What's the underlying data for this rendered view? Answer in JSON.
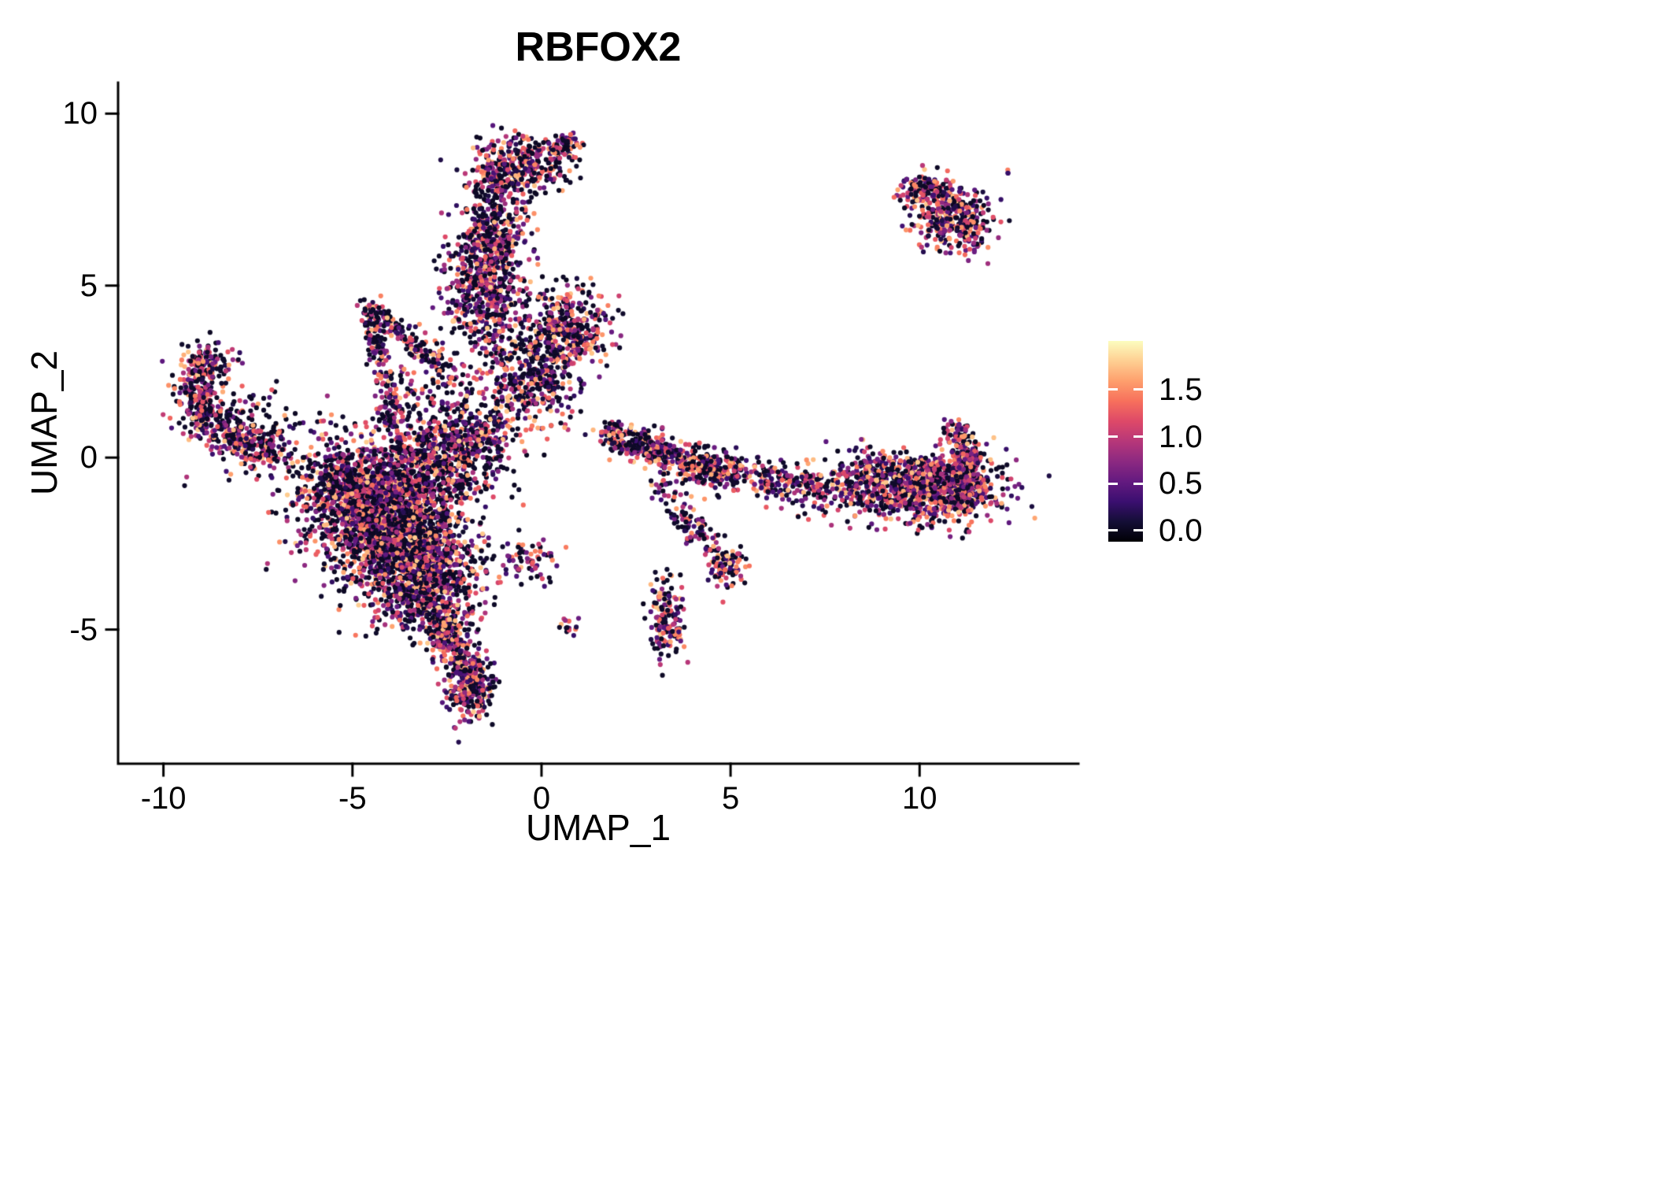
{
  "chart_data": {
    "type": "scatter",
    "title": "RBFOX2",
    "xlabel": "UMAP_1",
    "ylabel": "UMAP_2",
    "grid": false,
    "xlim": [
      -11.2,
      14.2
    ],
    "ylim": [
      -8.9,
      10.9
    ],
    "x_ticks": [
      -10,
      -5,
      0,
      5,
      10
    ],
    "x_tick_labels": [
      "-10",
      "-5",
      "0",
      "5",
      "10"
    ],
    "y_ticks": [
      10,
      5,
      0,
      -5
    ],
    "y_tick_labels": [
      "10",
      "5",
      "0",
      "-5"
    ],
    "seed": 42,
    "point_style": {
      "radius_px": 3.1,
      "zero_frac": 0.38,
      "value_min": 0.12,
      "value_max": 1.8,
      "value_pow": 1.1
    },
    "legend": {
      "position": "right",
      "tick_labels": [
        "1.5",
        "1.0",
        "0.5",
        "0.0"
      ],
      "tick_values": [
        1.5,
        1.0,
        0.5,
        0.0
      ],
      "colormap": "magma",
      "colormap_stops": [
        {
          "pos": 0.0,
          "color": "#000004"
        },
        {
          "pos": 0.1,
          "color": "#140e36"
        },
        {
          "pos": 0.2,
          "color": "#3b0f70"
        },
        {
          "pos": 0.3,
          "color": "#641a80"
        },
        {
          "pos": 0.4,
          "color": "#8c2981"
        },
        {
          "pos": 0.5,
          "color": "#b73779"
        },
        {
          "pos": 0.6,
          "color": "#de4968"
        },
        {
          "pos": 0.7,
          "color": "#f7705c"
        },
        {
          "pos": 0.8,
          "color": "#fe9f6d"
        },
        {
          "pos": 0.9,
          "color": "#fecf92"
        },
        {
          "pos": 1.0,
          "color": "#fcfdbf"
        }
      ]
    },
    "clusters": [
      {
        "name": "top-islet-main",
        "type": "blob",
        "n": 380,
        "cx": -0.7,
        "cy": 8.4,
        "sx": 0.6,
        "sy": 0.45
      },
      {
        "name": "top-islet-ne",
        "type": "blob",
        "n": 70,
        "cx": 0.55,
        "cy": 9.05,
        "sx": 0.28,
        "sy": 0.22
      },
      {
        "name": "upper-column-a",
        "type": "blob",
        "n": 320,
        "cx": -1.3,
        "cy": 6.6,
        "sx": 0.42,
        "sy": 0.65
      },
      {
        "name": "upper-column-b",
        "type": "blob",
        "n": 430,
        "cx": -1.5,
        "cy": 5.1,
        "sx": 0.55,
        "sy": 0.75
      },
      {
        "name": "upper-column-c",
        "type": "blob",
        "n": 190,
        "cx": -1.1,
        "cy": 3.5,
        "sx": 0.7,
        "sy": 0.75
      },
      {
        "name": "center-upper-sparse",
        "type": "blob",
        "n": 250,
        "cx": -0.55,
        "cy": 1.9,
        "sx": 0.85,
        "sy": 0.7
      },
      {
        "name": "center-right-blob",
        "type": "blob",
        "n": 340,
        "cx": 0.75,
        "cy": 3.7,
        "sx": 0.5,
        "sy": 0.62
      },
      {
        "name": "center-bridge",
        "type": "blob",
        "n": 110,
        "cx": 0.1,
        "cy": 2.6,
        "sx": 0.45,
        "sy": 0.5
      },
      {
        "name": "main-blob-core",
        "type": "blob",
        "n": 1500,
        "cx": -4.1,
        "cy": -1.6,
        "sx": 1.05,
        "sy": 1.05,
        "zf": 0.42
      },
      {
        "name": "main-blob-lower",
        "type": "blob",
        "n": 900,
        "cx": -3.4,
        "cy": -2.9,
        "sx": 0.8,
        "sy": 0.85,
        "zf": 0.42
      },
      {
        "name": "main-blob-left",
        "type": "blob",
        "n": 600,
        "cx": -5.0,
        "cy": -0.9,
        "sx": 0.85,
        "sy": 0.7,
        "zf": 0.42
      },
      {
        "name": "main-blob-upper",
        "type": "blob",
        "n": 380,
        "cx": -2.7,
        "cy": -0.2,
        "sx": 0.8,
        "sy": 0.6,
        "zf": 0.4
      },
      {
        "name": "main-blob-neck",
        "type": "blob",
        "n": 260,
        "cx": -2.0,
        "cy": 0.55,
        "sx": 0.7,
        "sy": 0.45
      },
      {
        "name": "main-blob-bottom",
        "type": "blob",
        "n": 300,
        "cx": -2.9,
        "cy": -4.1,
        "sx": 0.6,
        "sy": 0.5,
        "zf": 0.42
      },
      {
        "name": "tail-strand",
        "type": "strand",
        "n": 320,
        "x1": -2.75,
        "y1": -4.5,
        "x2": -1.8,
        "y2": -6.8,
        "j": 0.3
      },
      {
        "name": "tail-tip",
        "type": "blob",
        "n": 190,
        "cx": -1.85,
        "cy": -6.6,
        "sx": 0.32,
        "sy": 0.55
      },
      {
        "name": "small-south-center",
        "type": "blob",
        "n": 70,
        "cx": -0.35,
        "cy": -3.05,
        "sx": 0.4,
        "sy": 0.3
      },
      {
        "name": "tiny-south-pair",
        "type": "blob",
        "n": 14,
        "cx": 0.68,
        "cy": -4.9,
        "sx": 0.12,
        "sy": 0.14
      },
      {
        "name": "left-hook-top",
        "type": "blob",
        "n": 130,
        "cx": -8.85,
        "cy": 2.75,
        "sx": 0.35,
        "sy": 0.35
      },
      {
        "name": "left-hook-edge",
        "type": "blob",
        "n": 170,
        "cx": -9.1,
        "cy": 1.7,
        "sx": 0.28,
        "sy": 0.5
      },
      {
        "name": "left-hook-band",
        "type": "strand",
        "n": 230,
        "x1": -9.0,
        "y1": 1.1,
        "x2": -7.0,
        "y2": 0.05,
        "j": 0.3
      },
      {
        "name": "left-hook-scatter",
        "type": "blob",
        "n": 130,
        "cx": -7.7,
        "cy": 0.8,
        "sx": 0.75,
        "sy": 0.7,
        "zf": 0.45
      },
      {
        "name": "triangle-left-edge",
        "type": "strand",
        "n": 170,
        "x1": -4.55,
        "y1": 4.4,
        "x2": -3.95,
        "y2": 1.0,
        "j": 0.17
      },
      {
        "name": "triangle-diag-edge",
        "type": "strand",
        "n": 150,
        "x1": -4.5,
        "y1": 4.35,
        "x2": -2.55,
        "y2": 2.6,
        "j": 0.17
      },
      {
        "name": "triangle-fill",
        "type": "blob",
        "n": 100,
        "cx": -3.0,
        "cy": 1.8,
        "sx": 0.6,
        "sy": 0.6,
        "zf": 0.45
      },
      {
        "name": "right-band-a",
        "type": "strand",
        "n": 270,
        "x1": 1.7,
        "y1": 0.75,
        "x2": 3.3,
        "y2": 0.1,
        "j": 0.22
      },
      {
        "name": "right-band-b",
        "type": "strand",
        "n": 210,
        "x1": 3.3,
        "y1": 0.1,
        "x2": 5.2,
        "y2": -0.5,
        "j": 0.25,
        "zf": 0.33
      },
      {
        "name": "right-band-knot",
        "type": "blob",
        "n": 90,
        "cx": 4.3,
        "cy": -0.2,
        "sx": 0.45,
        "sy": 0.3
      },
      {
        "name": "right-band-c",
        "type": "strand",
        "n": 170,
        "x1": 5.2,
        "y1": -0.5,
        "x2": 7.3,
        "y2": -0.85,
        "j": 0.3,
        "zf": 0.35
      },
      {
        "name": "right-mass-main",
        "type": "blob",
        "n": 720,
        "cx": 9.3,
        "cy": -0.8,
        "sx": 1.15,
        "sy": 0.45,
        "zf": 0.32
      },
      {
        "name": "right-mass-east",
        "type": "blob",
        "n": 460,
        "cx": 10.7,
        "cy": -0.85,
        "sx": 0.75,
        "sy": 0.5,
        "zf": 0.32
      },
      {
        "name": "right-spur",
        "type": "strand",
        "n": 120,
        "x1": 10.9,
        "y1": 0.95,
        "x2": 11.4,
        "y2": -0.2,
        "j": 0.18
      },
      {
        "name": "right-edge",
        "type": "blob",
        "n": 140,
        "cx": 11.25,
        "cy": -0.6,
        "sx": 0.3,
        "sy": 0.45,
        "zf": 0.32
      },
      {
        "name": "diag-strand",
        "type": "strand",
        "n": 130,
        "x1": 3.0,
        "y1": -0.6,
        "x2": 5.0,
        "y2": -3.3,
        "j": 0.22,
        "zf": 0.33
      },
      {
        "name": "diag-knot",
        "type": "blob",
        "n": 70,
        "cx": 4.95,
        "cy": -3.2,
        "sx": 0.22,
        "sy": 0.3,
        "zf": 0.3
      },
      {
        "name": "south-mid-cluster",
        "type": "blob",
        "n": 150,
        "cx": 3.3,
        "cy": -4.8,
        "sx": 0.22,
        "sy": 0.6,
        "zf": 0.35
      },
      {
        "name": "ne-islet-top",
        "type": "blob",
        "n": 90,
        "cx": 10.2,
        "cy": 7.75,
        "sx": 0.38,
        "sy": 0.2,
        "zf": 0.3
      },
      {
        "name": "ne-islet-main",
        "type": "blob",
        "n": 260,
        "cx": 10.85,
        "cy": 7.0,
        "sx": 0.55,
        "sy": 0.5,
        "zf": 0.3
      },
      {
        "name": "ne-islet-diag",
        "type": "strand",
        "n": 120,
        "x1": 10.2,
        "y1": 7.8,
        "x2": 11.6,
        "y2": 6.2,
        "j": 0.25,
        "zf": 0.3
      },
      {
        "name": "ne-outlier",
        "type": "blob",
        "n": 3,
        "cx": 12.35,
        "cy": 8.3,
        "sx": 0.07,
        "sy": 0.07
      }
    ]
  }
}
